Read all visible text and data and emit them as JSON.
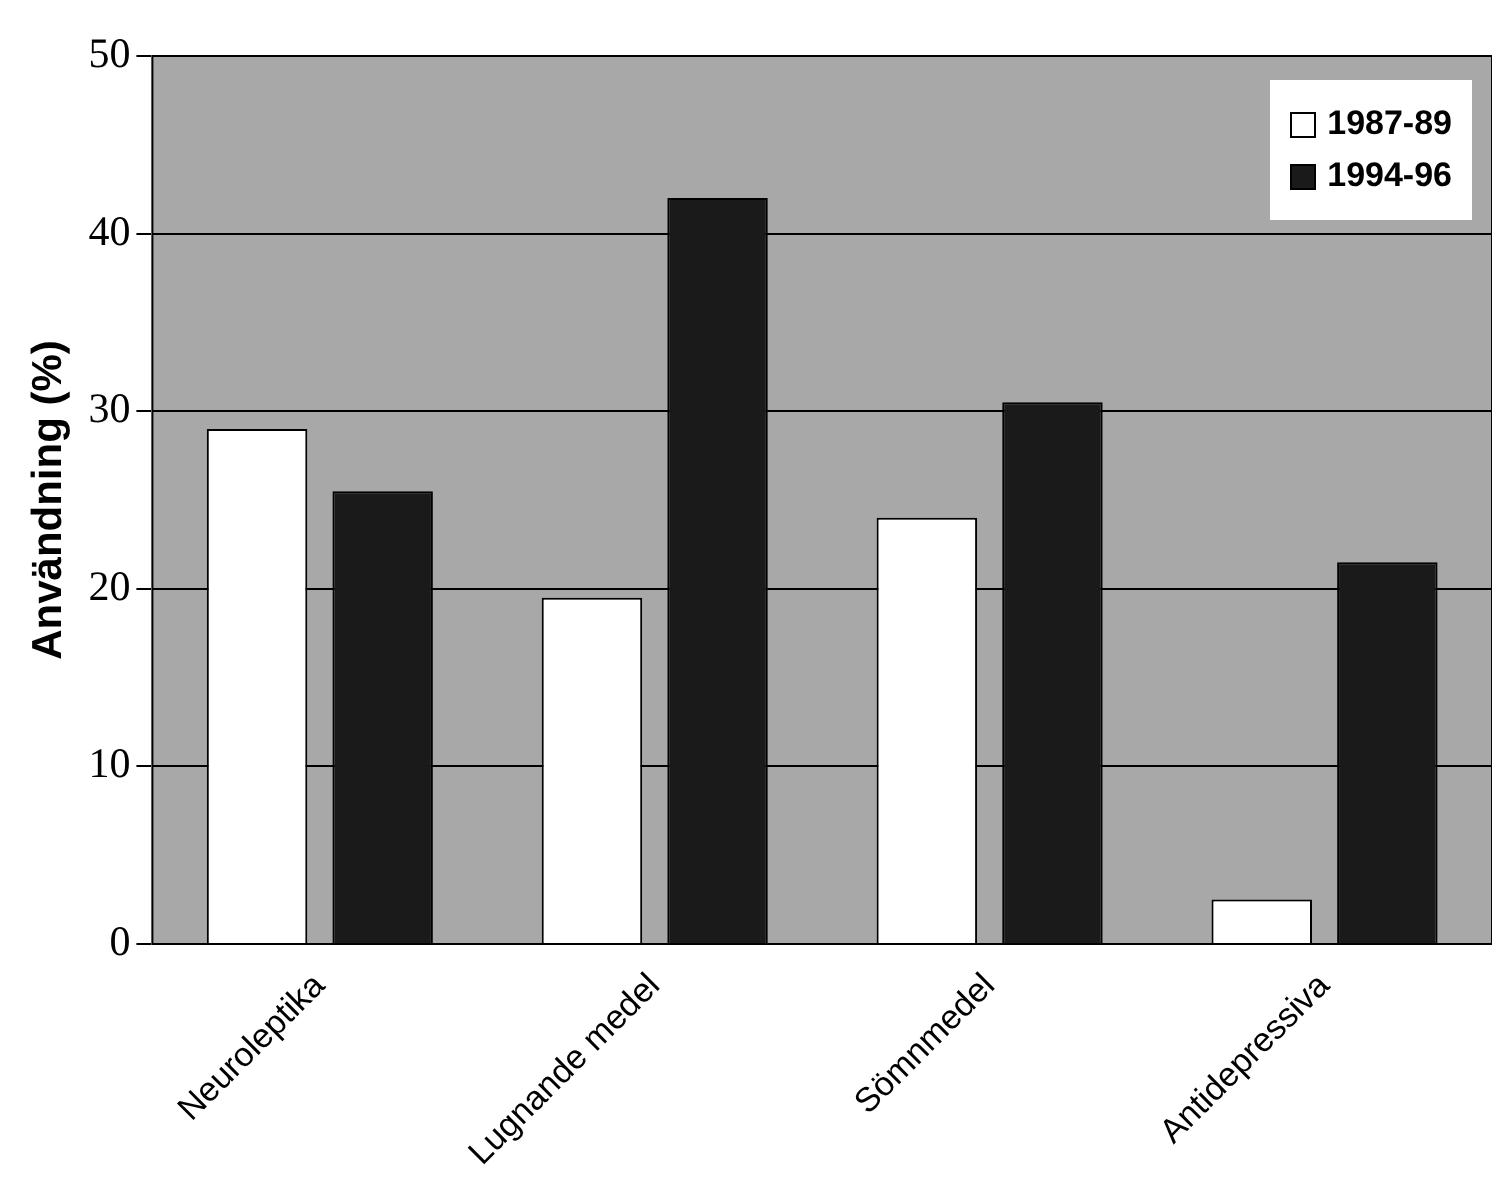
{
  "chart_data": {
    "type": "bar",
    "ylabel": "Användning (%)",
    "categories": [
      "Neuroleptika",
      "Lugnande medel",
      "Sömnmedel",
      "Antidepressiva"
    ],
    "series": [
      {
        "name": "1987-89",
        "color": "#ffffff",
        "values": [
          29,
          19.5,
          24,
          2.5
        ]
      },
      {
        "name": "1994-96",
        "color": "#1a1a1a",
        "values": [
          25.5,
          42,
          30.5,
          21.5
        ]
      }
    ],
    "ylim": [
      0,
      50
    ],
    "yticks": [
      0,
      10,
      20,
      30,
      40,
      50
    ],
    "grid": "y",
    "legend": "top right"
  }
}
